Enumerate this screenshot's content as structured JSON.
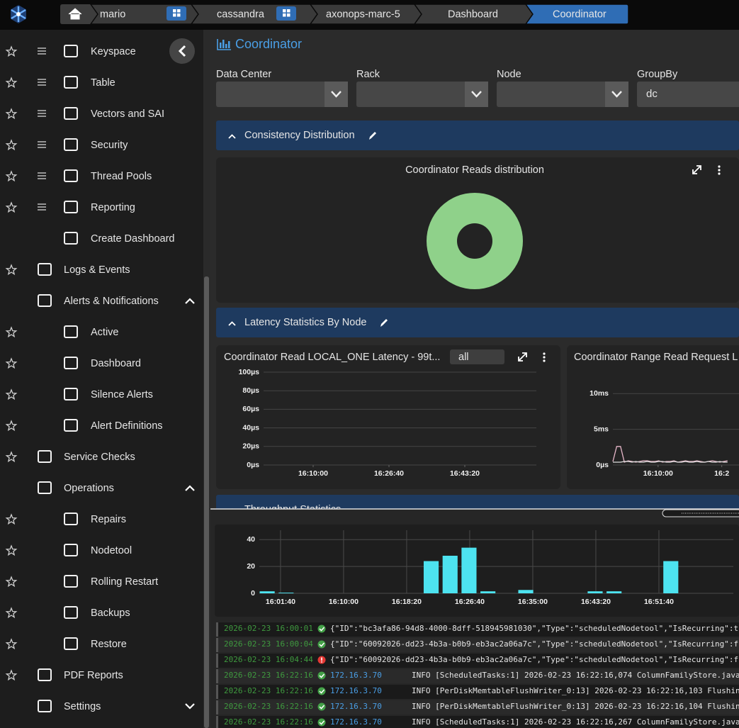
{
  "breadcrumb": [
    "mario",
    "cassandra",
    "axonops-marc-5",
    "Dashboard",
    "Coordinator"
  ],
  "sidebar": [
    "Keyspace",
    "Table",
    "Vectors and SAI",
    "Security",
    "Thread Pools",
    "Reporting",
    "Create Dashboard",
    "Logs & Events",
    "Alerts & Notifications",
    "Active",
    "Dashboard",
    "Silence Alerts",
    "Alert Definitions",
    "Service Checks",
    "Operations",
    "Repairs",
    "Nodetool",
    "Rolling Restart",
    "Backups",
    "Restore",
    "PDF Reports",
    "Settings"
  ],
  "page_title": "Coordinator",
  "filters": [
    {
      "label": "Data Center"
    },
    {
      "label": "Rack"
    },
    {
      "label": "Node"
    },
    {
      "label": "GroupBy",
      "value": "dc"
    }
  ],
  "sections": [
    "Consistency Distribution",
    "Latency Statistics By Node",
    "Throughput Statistics"
  ],
  "chart_data": [
    {
      "type": "pie",
      "title": "Coordinator Reads distribution",
      "values": [
        100
      ],
      "color": "#8fd18a"
    },
    {
      "type": "line",
      "title": "Coordinator Read LOCAL_ONE Latency - 99t...",
      "selector": "all",
      "xlim": [
        57546,
        61144
      ],
      "xticks": [
        {
          "value": 58200,
          "label": "16:10:00"
        },
        {
          "value": 59200,
          "label": "16:26:40"
        },
        {
          "value": 60200,
          "label": "16:43:20"
        }
      ],
      "ylim": [
        0,
        100
      ],
      "yticks": [
        {
          "value": 0,
          "label": "0µs"
        },
        {
          "value": 20,
          "label": "20µs"
        },
        {
          "value": 40,
          "label": "40µs"
        },
        {
          "value": 60,
          "label": "60µs"
        },
        {
          "value": 80,
          "label": "80µs"
        },
        {
          "value": 100,
          "label": "100µs"
        }
      ]
    },
    {
      "type": "line",
      "title": "Coordinator Range Read Request L",
      "xlim": [
        57490,
        61340
      ],
      "xticks": [
        {
          "value": 58200,
          "label": "16:10:00"
        },
        {
          "value": 59200,
          "label": "16:2"
        }
      ],
      "ylim": [
        0,
        13
      ],
      "yticks": [
        {
          "value": 0,
          "label": "0µs"
        },
        {
          "value": 5,
          "label": "5ms"
        },
        {
          "value": 10,
          "label": "10ms"
        }
      ],
      "x": [
        57490,
        57550,
        57610,
        57670,
        57730,
        57790,
        57850,
        57910,
        57970,
        58030,
        58090,
        58150,
        58210,
        58270,
        58330,
        58390,
        58450,
        58510,
        58570,
        58630,
        58690,
        58750,
        58810,
        58870,
        58930,
        58990,
        59050,
        59110,
        59170,
        59230,
        59290
      ],
      "series": [
        {
          "color": "#e7b7c9",
          "values": [
            0.5,
            2.6,
            2.6,
            0.4,
            0.6,
            0.5,
            0.4,
            0.5,
            0.6,
            0.6,
            0.5,
            0.5,
            0.6,
            0.4,
            0.5,
            0.5,
            0.6,
            0.4,
            0.5,
            0.6,
            0.5,
            0.5,
            0.6,
            0.5,
            0.4,
            0.5,
            0.6,
            0.5,
            0.4,
            0.5,
            0.6
          ]
        },
        {
          "color": "#dddddd",
          "values": [
            0.4,
            0.4,
            0.4,
            0.5,
            0.5,
            0.4,
            0.5,
            0.4,
            0.4,
            0.5,
            0.4,
            0.4,
            0.5,
            0.5,
            0.4,
            0.4,
            0.5,
            0.4,
            0.4,
            0.5,
            0.4,
            0.4,
            0.5,
            0.4,
            0.4,
            0.5,
            0.4,
            0.4,
            0.5,
            0.4,
            0.4
          ]
        }
      ]
    },
    {
      "type": "bar",
      "x": [
        57600,
        57750,
        58900,
        59050,
        59200,
        59350,
        59650,
        60200,
        60350,
        60800
      ],
      "values": [
        1.5,
        0.5,
        24,
        28,
        34,
        1.5,
        2.5,
        1.5,
        1.5,
        24
      ],
      "color": "#4de3f0",
      "xlim": [
        57532,
        61290
      ],
      "xticks": [
        {
          "value": 57700,
          "label": "16:01:40"
        },
        {
          "value": 58200,
          "label": "16:10:00"
        },
        {
          "value": 58700,
          "label": "16:18:20"
        },
        {
          "value": 59200,
          "label": "16:26:40"
        },
        {
          "value": 59700,
          "label": "16:35:00"
        },
        {
          "value": 60200,
          "label": "16:43:20"
        },
        {
          "value": 60700,
          "label": "16:51:40"
        }
      ],
      "ylim": [
        0,
        47
      ],
      "yticks": [
        0,
        20,
        40
      ]
    }
  ],
  "logs": [
    {
      "time": "2026-02-23 16:00:01",
      "status": "ok",
      "text": "{\"ID\":\"bc3afa86-94d8-4000-8dff-518945981030\",\"Type\":\"scheduledNodetool\",\"IsRecurring\":t"
    },
    {
      "time": "2026-02-23 16:00:04",
      "status": "ok",
      "text": "{\"ID\":\"60092026-dd23-4b3a-b0b9-eb3ac2a06a7c\",\"Type\":\"scheduledNodetool\",\"IsRecurring\":f"
    },
    {
      "time": "2026-02-23 16:04:44",
      "status": "error",
      "text": "{\"ID\":\"60092026-dd23-4b3a-b0b9-eb3ac2a06a7c\",\"Type\":\"scheduledNodetool\",\"IsRecurring\":f"
    },
    {
      "time": "2026-02-23 16:22:16",
      "status": "ok",
      "host": "172.16.3.70",
      "text": "INFO [ScheduledTasks:1] 2026-02-23 16:22:16,074 ColumnFamilyStore.java"
    },
    {
      "time": "2026-02-23 16:22:16",
      "status": "ok",
      "host": "172.16.3.70",
      "text": "INFO [PerDiskMemtableFlushWriter_0:13] 2026-02-23 16:22:16,103 Flushin"
    },
    {
      "time": "2026-02-23 16:22:16",
      "status": "ok",
      "host": "172.16.3.70",
      "text": "INFO [PerDiskMemtableFlushWriter_0:13] 2026-02-23 16:22:16,104 Flushin"
    },
    {
      "time": "2026-02-23 16:22:16",
      "status": "ok",
      "host": "172.16.3.70",
      "text": "INFO [ScheduledTasks:1] 2026-02-23 16:22:16,267 ColumnFamilyStore.java"
    }
  ]
}
